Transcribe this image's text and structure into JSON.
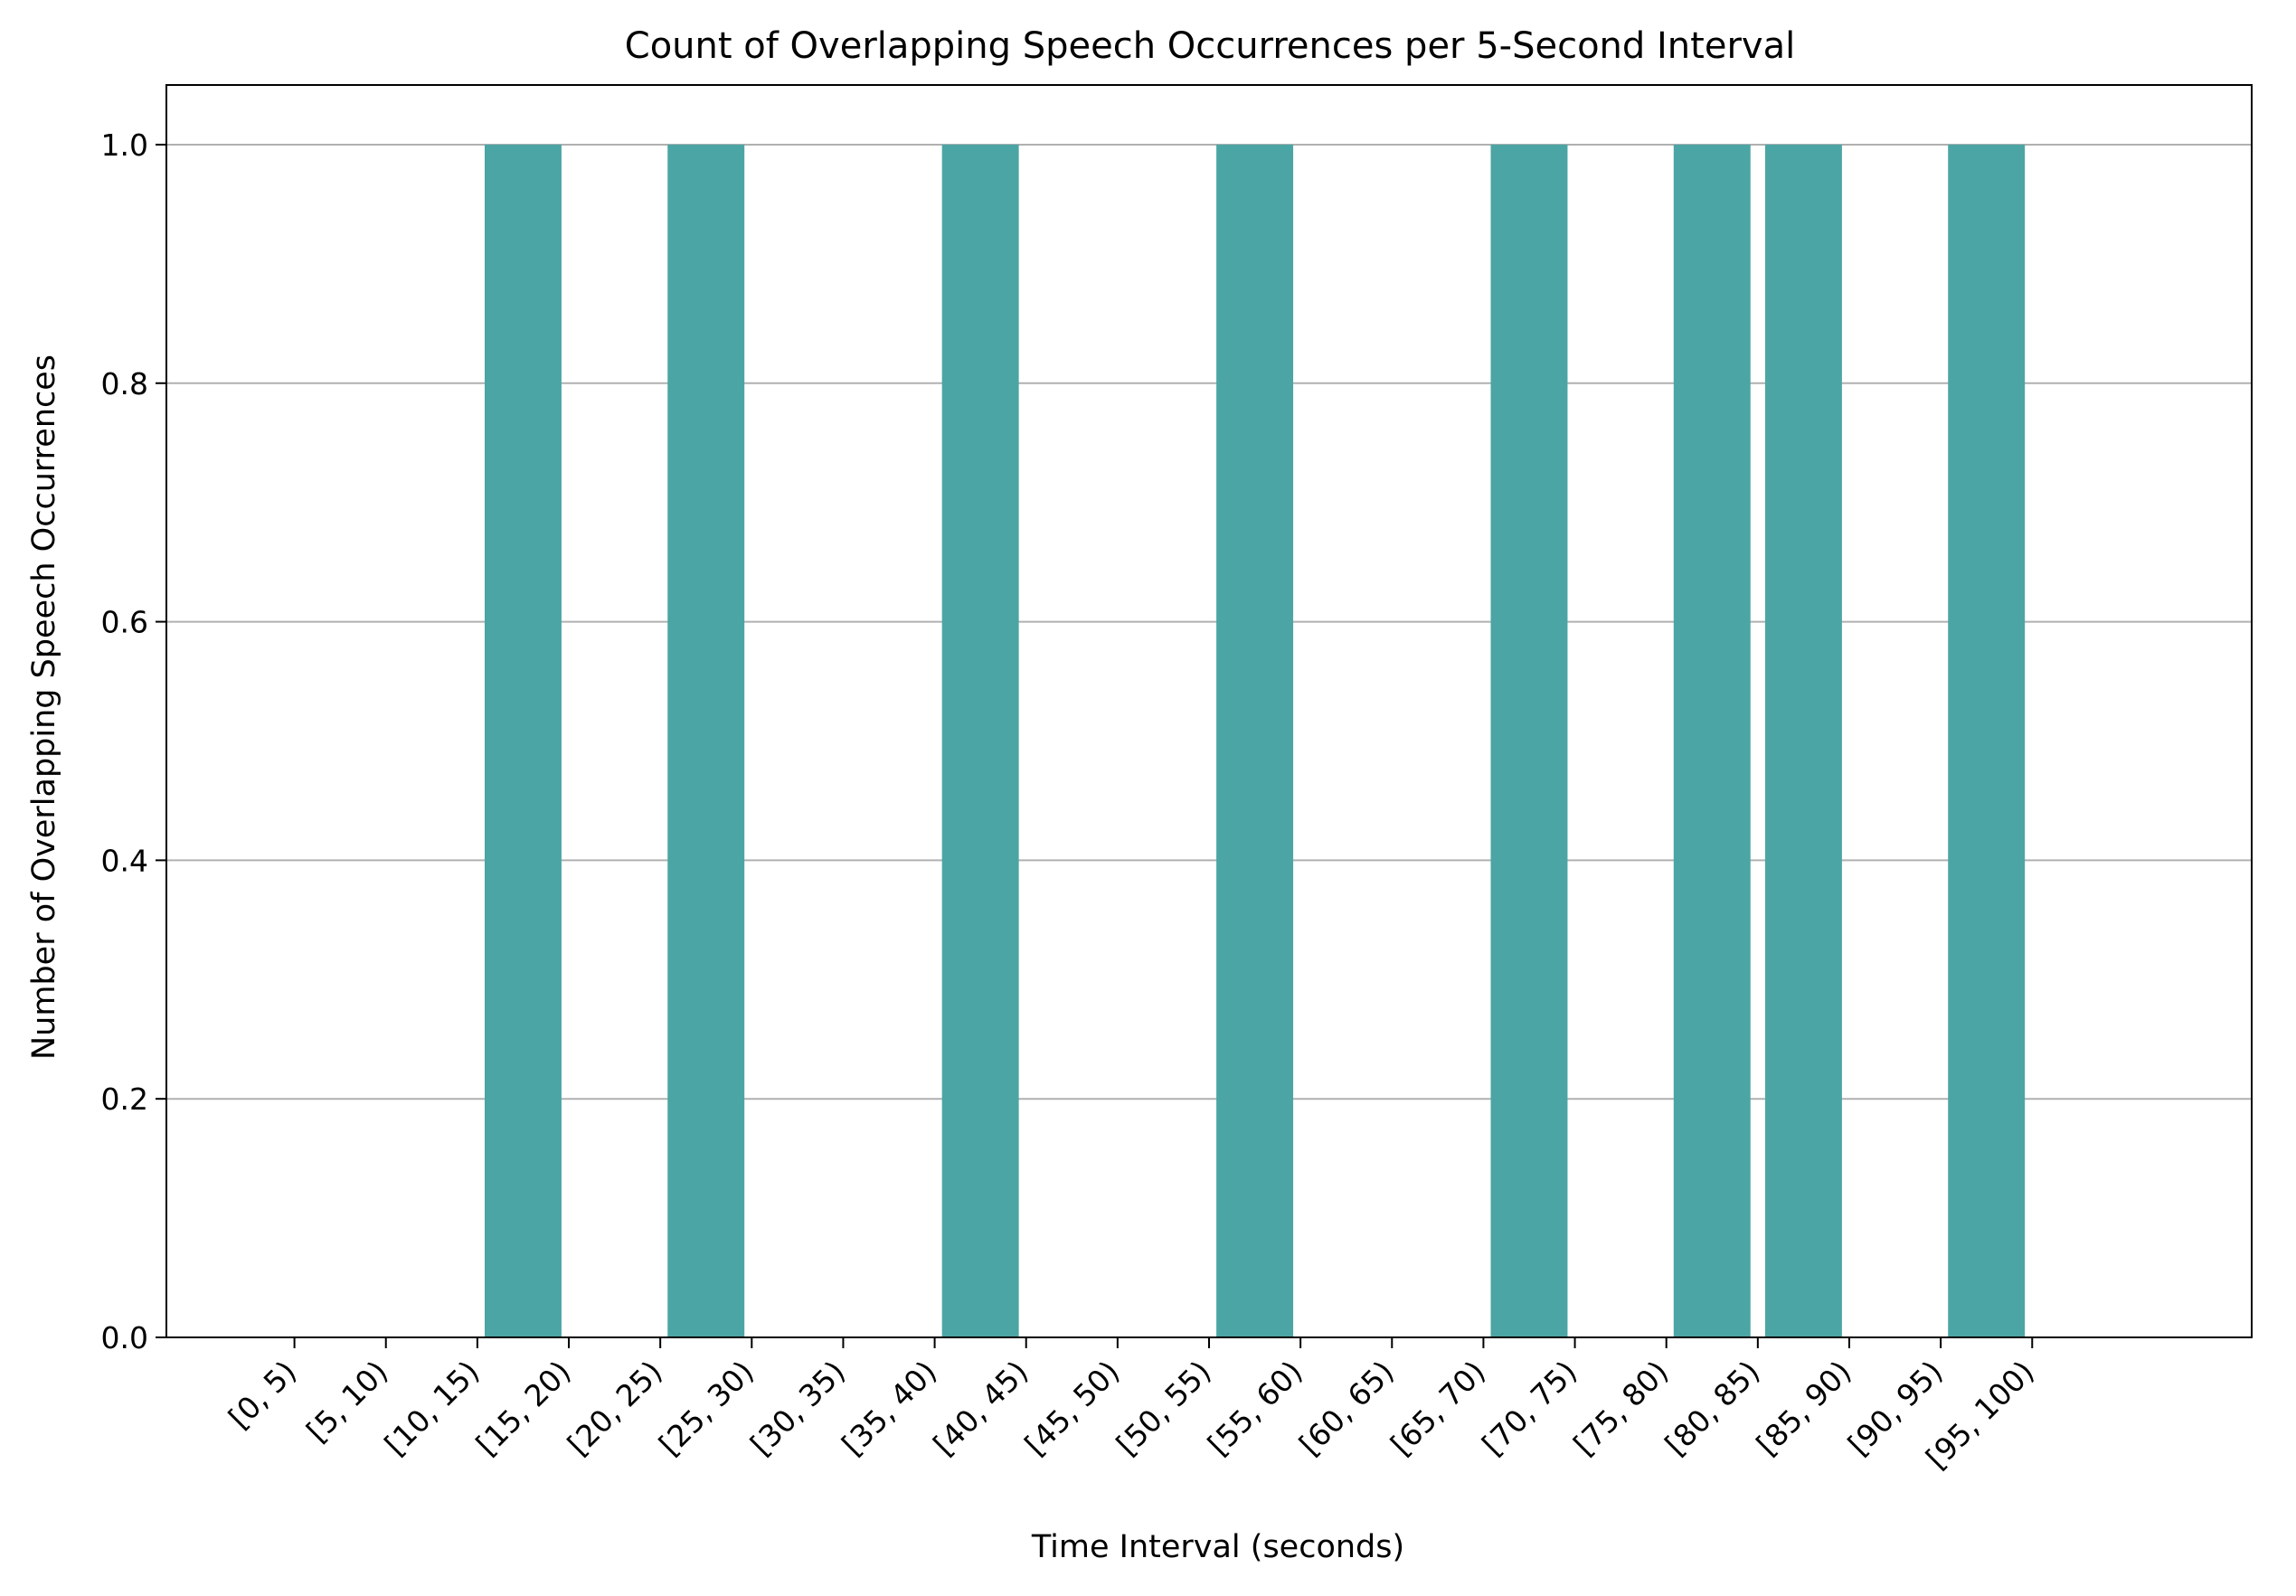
{
  "chart_data": {
    "type": "bar",
    "title": "Count of Overlapping Speech Occurrences per 5-Second Interval",
    "xlabel": "Time Interval (seconds)",
    "ylabel": "Number of Overlapping Speech Occurrences",
    "categories": [
      "[0, 5)",
      "[5, 10)",
      "[10, 15)",
      "[15, 20)",
      "[20, 25)",
      "[25, 30)",
      "[30, 35)",
      "[35, 40)",
      "[40, 45)",
      "[45, 50)",
      "[50, 55)",
      "[55, 60)",
      "[60, 65)",
      "[65, 70)",
      "[70, 75)",
      "[75, 80)",
      "[80, 85)",
      "[85, 90)",
      "[90, 95)",
      "[95, 100)"
    ],
    "series": [
      {
        "x": [
          12.5,
          22.5,
          37.5,
          52.5,
          67.5,
          77.5,
          82.5,
          92.5
        ],
        "values": [
          1,
          1,
          1,
          1,
          1,
          1,
          1,
          1
        ]
      }
    ],
    "ylim": [
      0,
      1.05
    ],
    "xlim": [
      -7,
      107
    ],
    "yticks": [
      "0.0",
      "0.2",
      "0.4",
      "0.6",
      "0.8",
      "1.0"
    ],
    "bar_color": "#4ca5a5",
    "grid": "y",
    "legend": "none"
  }
}
